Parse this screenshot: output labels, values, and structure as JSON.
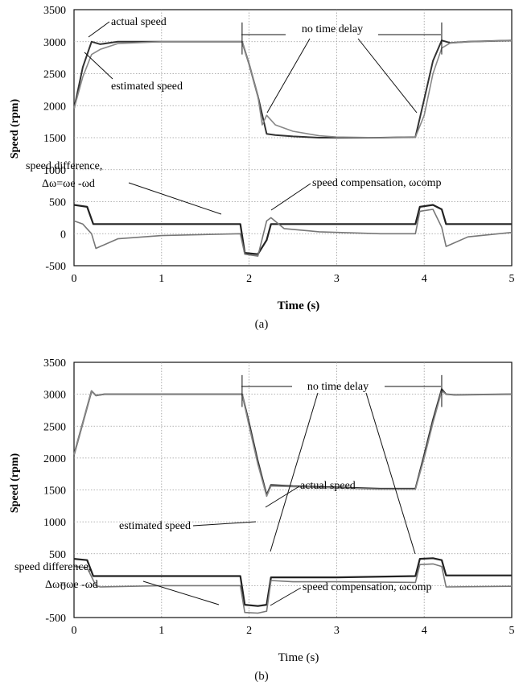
{
  "chart_data": [
    {
      "type": "line",
      "panel": "a",
      "caption": "(a)",
      "xlabel": "Time (s)",
      "ylabel": "Speed (rpm)",
      "xlim": [
        0,
        5
      ],
      "ylim": [
        -500,
        3500
      ],
      "xticks": [
        0,
        1,
        2,
        3,
        4,
        5
      ],
      "yticks": [
        -500,
        0,
        500,
        1000,
        1500,
        2000,
        2500,
        3000,
        3500
      ],
      "grid": true,
      "series": [
        {
          "name": "actual speed",
          "x": [
            0,
            0.1,
            0.2,
            0.3,
            0.5,
            1.0,
            1.5,
            1.92,
            2.0,
            2.1,
            2.2,
            2.3,
            2.5,
            2.8,
            3.0,
            3.5,
            3.9,
            4.0,
            4.1,
            4.2,
            4.3,
            4.5,
            5.0
          ],
          "y": [
            1950,
            2600,
            3000,
            2960,
            3000,
            3000,
            3000,
            3000,
            2650,
            2150,
            1560,
            1540,
            1520,
            1500,
            1500,
            1500,
            1510,
            2100,
            2700,
            3020,
            2980,
            3000,
            3020
          ]
        },
        {
          "name": "estimated speed",
          "x": [
            0,
            0.1,
            0.2,
            0.3,
            0.5,
            1.0,
            1.5,
            1.92,
            2.0,
            2.1,
            2.15,
            2.2,
            2.3,
            2.5,
            2.8,
            3.0,
            3.5,
            3.9,
            4.0,
            4.1,
            4.2,
            4.3,
            4.5,
            5.0
          ],
          "y": [
            1950,
            2450,
            2800,
            2880,
            2970,
            3000,
            3000,
            3000,
            2650,
            2150,
            1700,
            1850,
            1700,
            1600,
            1530,
            1510,
            1500,
            1510,
            1850,
            2500,
            2900,
            2980,
            3000,
            3020
          ]
        },
        {
          "name": "speed difference, Δω=ωe -ωd",
          "x": [
            0,
            0.15,
            0.22,
            0.3,
            1.0,
            1.9,
            1.95,
            2.1,
            2.2,
            2.25,
            2.5,
            3.0,
            3.9,
            3.95,
            4.1,
            4.2,
            4.25,
            5.0
          ],
          "y": [
            450,
            420,
            150,
            150,
            150,
            150,
            -300,
            -320,
            -100,
            150,
            150,
            150,
            150,
            420,
            450,
            380,
            150,
            150
          ]
        },
        {
          "name": "speed compensation, ωcomp",
          "x": [
            0,
            0.1,
            0.2,
            0.25,
            0.5,
            1.0,
            1.9,
            1.95,
            2.1,
            2.2,
            2.25,
            2.4,
            2.8,
            3.5,
            3.9,
            3.95,
            4.1,
            4.2,
            4.25,
            4.5,
            5.0
          ],
          "y": [
            200,
            150,
            0,
            -230,
            -80,
            -30,
            0,
            -320,
            -350,
            200,
            250,
            80,
            30,
            0,
            0,
            350,
            380,
            100,
            -200,
            -50,
            20
          ]
        }
      ],
      "annotations": [
        "actual speed",
        "estimated speed",
        "no time delay",
        "speed difference,",
        "Δω=ωe -ωd",
        "speed compensation, ωcomp"
      ]
    },
    {
      "type": "line",
      "panel": "b",
      "caption": "(b)",
      "xlabel": "Time (s)",
      "ylabel": "Speed (rpm)",
      "xlim": [
        0,
        5
      ],
      "ylim": [
        -500,
        3500
      ],
      "xticks": [
        0,
        1,
        2,
        3,
        4,
        5
      ],
      "yticks": [
        -500,
        0,
        500,
        1000,
        1500,
        2000,
        2500,
        3000,
        3500
      ],
      "grid": true,
      "series": [
        {
          "name": "actual speed",
          "x": [
            0,
            0.1,
            0.2,
            0.25,
            0.35,
            1.0,
            1.5,
            1.92,
            2.0,
            2.1,
            2.2,
            2.25,
            2.5,
            3.0,
            3.5,
            3.9,
            4.0,
            4.1,
            4.2,
            4.25,
            4.35,
            5.0
          ],
          "y": [
            2050,
            2550,
            3050,
            2980,
            3000,
            3000,
            3000,
            3000,
            2550,
            1950,
            1420,
            1580,
            1560,
            1540,
            1520,
            1520,
            2050,
            2600,
            3080,
            3000,
            2990,
            3000
          ]
        },
        {
          "name": "estimated speed",
          "x": [
            0,
            0.1,
            0.2,
            0.25,
            0.35,
            1.0,
            1.5,
            1.92,
            2.0,
            2.1,
            2.2,
            2.25,
            2.5,
            3.0,
            3.5,
            3.9,
            4.0,
            4.1,
            4.2,
            4.25,
            4.35,
            5.0
          ],
          "y": [
            2050,
            2550,
            3050,
            2980,
            3000,
            3000,
            3000,
            3000,
            2500,
            1900,
            1400,
            1560,
            1550,
            1530,
            1510,
            1510,
            2000,
            2550,
            3050,
            3000,
            2990,
            3000
          ]
        },
        {
          "name": "speed difference, Δω=ωe -ωd",
          "x": [
            0,
            0.15,
            0.22,
            0.3,
            1.0,
            1.9,
            1.95,
            2.1,
            2.2,
            2.25,
            2.5,
            3.0,
            3.9,
            3.95,
            4.1,
            4.2,
            4.25,
            5.0
          ],
          "y": [
            420,
            400,
            150,
            150,
            150,
            150,
            -300,
            -320,
            -300,
            130,
            130,
            130,
            150,
            420,
            430,
            400,
            160,
            160
          ]
        },
        {
          "name": "speed compensation, ωcomp",
          "x": [
            0,
            0.15,
            0.25,
            0.3,
            1.0,
            1.9,
            1.95,
            2.1,
            2.2,
            2.25,
            2.5,
            3.0,
            3.9,
            3.95,
            4.1,
            4.2,
            4.25,
            5.0
          ],
          "y": [
            300,
            280,
            0,
            -20,
            0,
            0,
            -420,
            -430,
            -400,
            80,
            60,
            60,
            50,
            330,
            340,
            300,
            -20,
            -10
          ]
        }
      ],
      "annotations": [
        "no time delay",
        "actual speed",
        "estimated speed",
        "speed difference,",
        "Δω=ωe -ωd",
        "speed compensation, ωcomp"
      ]
    }
  ]
}
